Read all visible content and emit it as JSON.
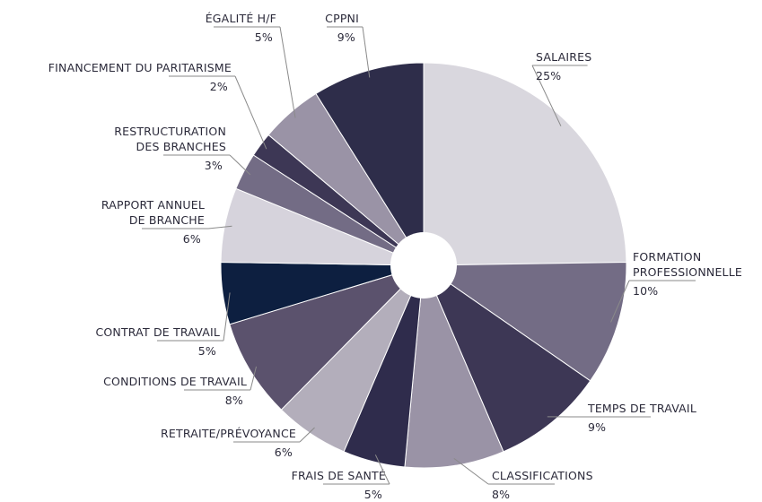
{
  "chart_data": {
    "type": "pie",
    "categories": [
      "SALAIRES",
      "FORMATION\nPROFESSIONNELLE",
      "TEMPS DE TRAVAIL",
      "CLASSIFICATIONS",
      "FRAIS DE SANTÉ",
      "RETRAITE/PRÉVOYANCE",
      "CONDITIONS DE TRAVAIL",
      "CONTRAT DE TRAVAIL",
      "RAPPORT ANNUEL\nDE BRANCHE",
      "RESTRUCTURATION\nDES BRANCHES",
      "FINANCEMENT DU PARITARISME",
      "ÉGALITÉ H/F",
      "CPPNI"
    ],
    "values": [
      25,
      10,
      9,
      8,
      5,
      6,
      8,
      5,
      6,
      3,
      2,
      5,
      9
    ],
    "value_labels": [
      "25%",
      "10%",
      "9%",
      "8%",
      "5%",
      "6%",
      "8%",
      "5%",
      "6%",
      "3%",
      "2%",
      "5%",
      "9%"
    ],
    "colors": [
      "#d9d7de",
      "#736c85",
      "#3d3755",
      "#9a93a6",
      "#2f2c4c",
      "#b3aebb",
      "#5b526d",
      "#0d1f40",
      "#d6d3dc",
      "#736c85",
      "#3d3755",
      "#9a93a6",
      "#2e2d4a"
    ]
  }
}
